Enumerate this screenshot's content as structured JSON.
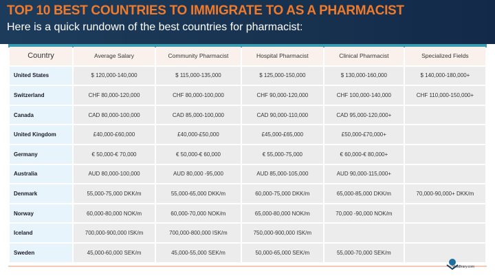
{
  "header": {
    "title": "TOP 10 BEST COUNTRIES TO IMMIGRATE TO AS A PHARMACIST",
    "subtitle": "Here is a quick rundown of the best countries for pharmacist:"
  },
  "table": {
    "columns": [
      "Country",
      "Average Salary",
      "Community Pharmacist",
      "Hospital Pharmacist",
      "Clinical Pharmacist",
      "Specialized Fields"
    ],
    "rows": [
      [
        "United States",
        "$ 120,000-140,000",
        "$ 115,000-135,000",
        "$ 125,000-150,000",
        "$ 130,000-160,000",
        "$ 140,000-180,000+"
      ],
      [
        "Switzerland",
        "CHF 80,000-120,000",
        "CHF 80,000-100,000",
        "CHF 90,000-120,000",
        "CHF 100,000-140,000",
        "CHF 110,000-150,000+"
      ],
      [
        "Canada",
        "CAD 80,000-100,000",
        "CAD 85,000-100,000",
        "CAD 90,000-110,000",
        "CAD 95,000-120,000+",
        ""
      ],
      [
        "United Kingdom",
        "£40,000-£60,000",
        "£40,000-£50,000",
        "£45,000-£65,000",
        "£50,000-£70,000+",
        ""
      ],
      [
        "Germany",
        "€ 50,000-€ 70,000",
        "€ 50,000-€ 60,000",
        "€ 55,000-75,000",
        "€ 60,000-€ 80,000+",
        ""
      ],
      [
        "Australia",
        "AUD 80,000-100,000",
        "AUD 80,000 -95,000",
        "AUD 85,000-105,000",
        "AUD 90,000-115,000+",
        ""
      ],
      [
        "Denmark",
        "55,000-75,000 DKK/m",
        "55,000-65,000 DKK/m",
        "60,000-75,000 DKK/m",
        "65,000-85,000 DKK/m",
        "70,000-90,000+ DKK/m"
      ],
      [
        "Norway",
        "60,000-80,000 NOK/m",
        "60,000-70,000 NOK/m",
        "65,000-80,000 NOK/m",
        "70,000 -90,000 NOK/m",
        ""
      ],
      [
        "Iceland",
        "700,000-900,000 ISK/m",
        "700,000-800,000 ISK/m",
        "750,000-900,000 ISK/m",
        "",
        ""
      ],
      [
        "Sweden",
        "45,000-60,000 SEK/m",
        "45,000-55,000 SEK/m",
        "50,000-65,000 SEK/m",
        "55,000-70,000 SEK/m",
        ""
      ]
    ]
  },
  "logo": {
    "text": "VisaBrary.com",
    "icon": "globe-icon"
  }
}
